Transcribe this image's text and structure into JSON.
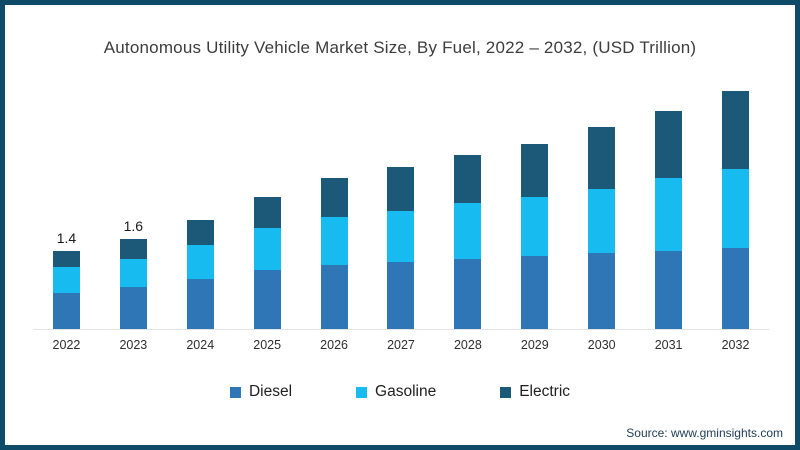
{
  "title": "Autonomous Utility Vehicle Market Size, By Fuel, 2022 – 2032, (USD Trillion)",
  "footer": {
    "source": "Source: www.gminsights.com"
  },
  "colors": {
    "frame_border": "#0f4a68",
    "axis_line": "#e3e3e3",
    "diesel": "#2f76b7",
    "gasoline": "#17bbf0",
    "electric": "#1c5878"
  },
  "chart_data": {
    "type": "bar",
    "stacked": true,
    "title": "Autonomous Utility Vehicle Market Size, By Fuel, 2022 – 2032, (USD Trillion)",
    "unit": "USD Trillion",
    "categories": [
      "2022",
      "2023",
      "2024",
      "2025",
      "2026",
      "2027",
      "2028",
      "2029",
      "2030",
      "2031",
      "2032"
    ],
    "series": [
      {
        "name": "Diesel",
        "color": "#2f76b7",
        "values": [
          0.65,
          0.75,
          0.9,
          1.05,
          1.15,
          1.2,
          1.25,
          1.3,
          1.35,
          1.4,
          1.45
        ]
      },
      {
        "name": "Gasoline",
        "color": "#17bbf0",
        "values": [
          0.45,
          0.5,
          0.6,
          0.75,
          0.85,
          0.9,
          1.0,
          1.05,
          1.15,
          1.3,
          1.4
        ]
      },
      {
        "name": "Electric",
        "color": "#1c5878",
        "values": [
          0.3,
          0.35,
          0.45,
          0.55,
          0.7,
          0.8,
          0.85,
          0.95,
          1.1,
          1.2,
          1.4
        ]
      }
    ],
    "bar_labels": [
      "1.4",
      "1.6",
      "",
      "",
      "",
      "",
      "",
      "",
      "",
      "",
      ""
    ],
    "totals_estimated": [
      1.4,
      1.6,
      1.95,
      2.35,
      2.7,
      2.9,
      3.1,
      3.3,
      3.6,
      3.9,
      4.25
    ],
    "ylim": [
      0,
      4.4
    ],
    "y_axis_shown": false,
    "gridlines": false,
    "legend_position": "bottom"
  }
}
